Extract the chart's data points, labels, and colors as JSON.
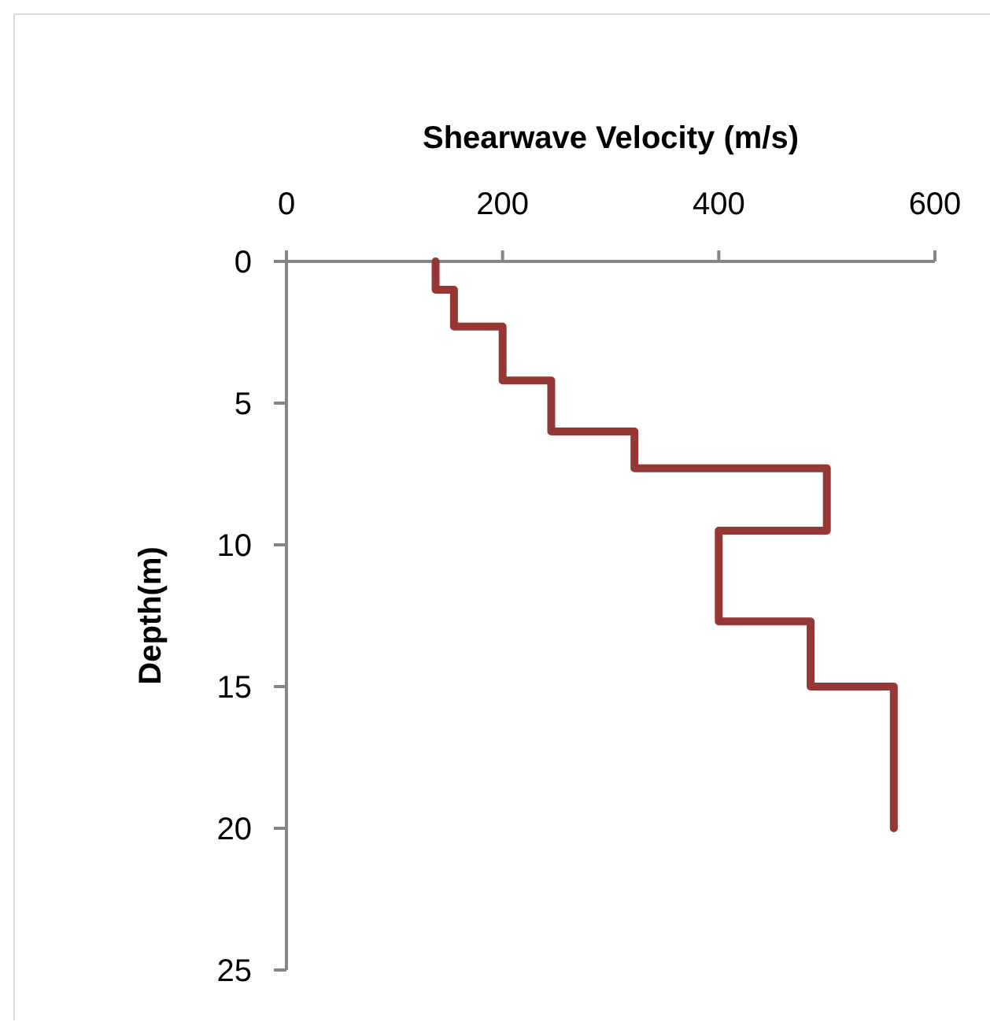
{
  "chart_data": {
    "type": "line",
    "xlabel": "Shearwave Velocity (m/s)",
    "ylabel": "Depth(m)",
    "xlim": [
      0,
      600
    ],
    "xticks": [
      0,
      200,
      400,
      600
    ],
    "ylim": [
      25,
      0
    ],
    "yticks": [
      0,
      5,
      10,
      15,
      20,
      25
    ],
    "grid": false,
    "marker": "none",
    "series": [
      {
        "color": "#953735",
        "x": [
          138,
          138,
          155,
          155,
          200,
          200,
          245,
          245,
          322,
          322,
          500,
          500,
          400,
          400,
          485,
          485,
          562,
          562
        ],
        "values": [
          0,
          1,
          1,
          2.3,
          2.3,
          4.2,
          4.2,
          6,
          6,
          7.3,
          7.3,
          9.5,
          9.5,
          12.7,
          12.7,
          15,
          15,
          20
        ]
      }
    ]
  }
}
